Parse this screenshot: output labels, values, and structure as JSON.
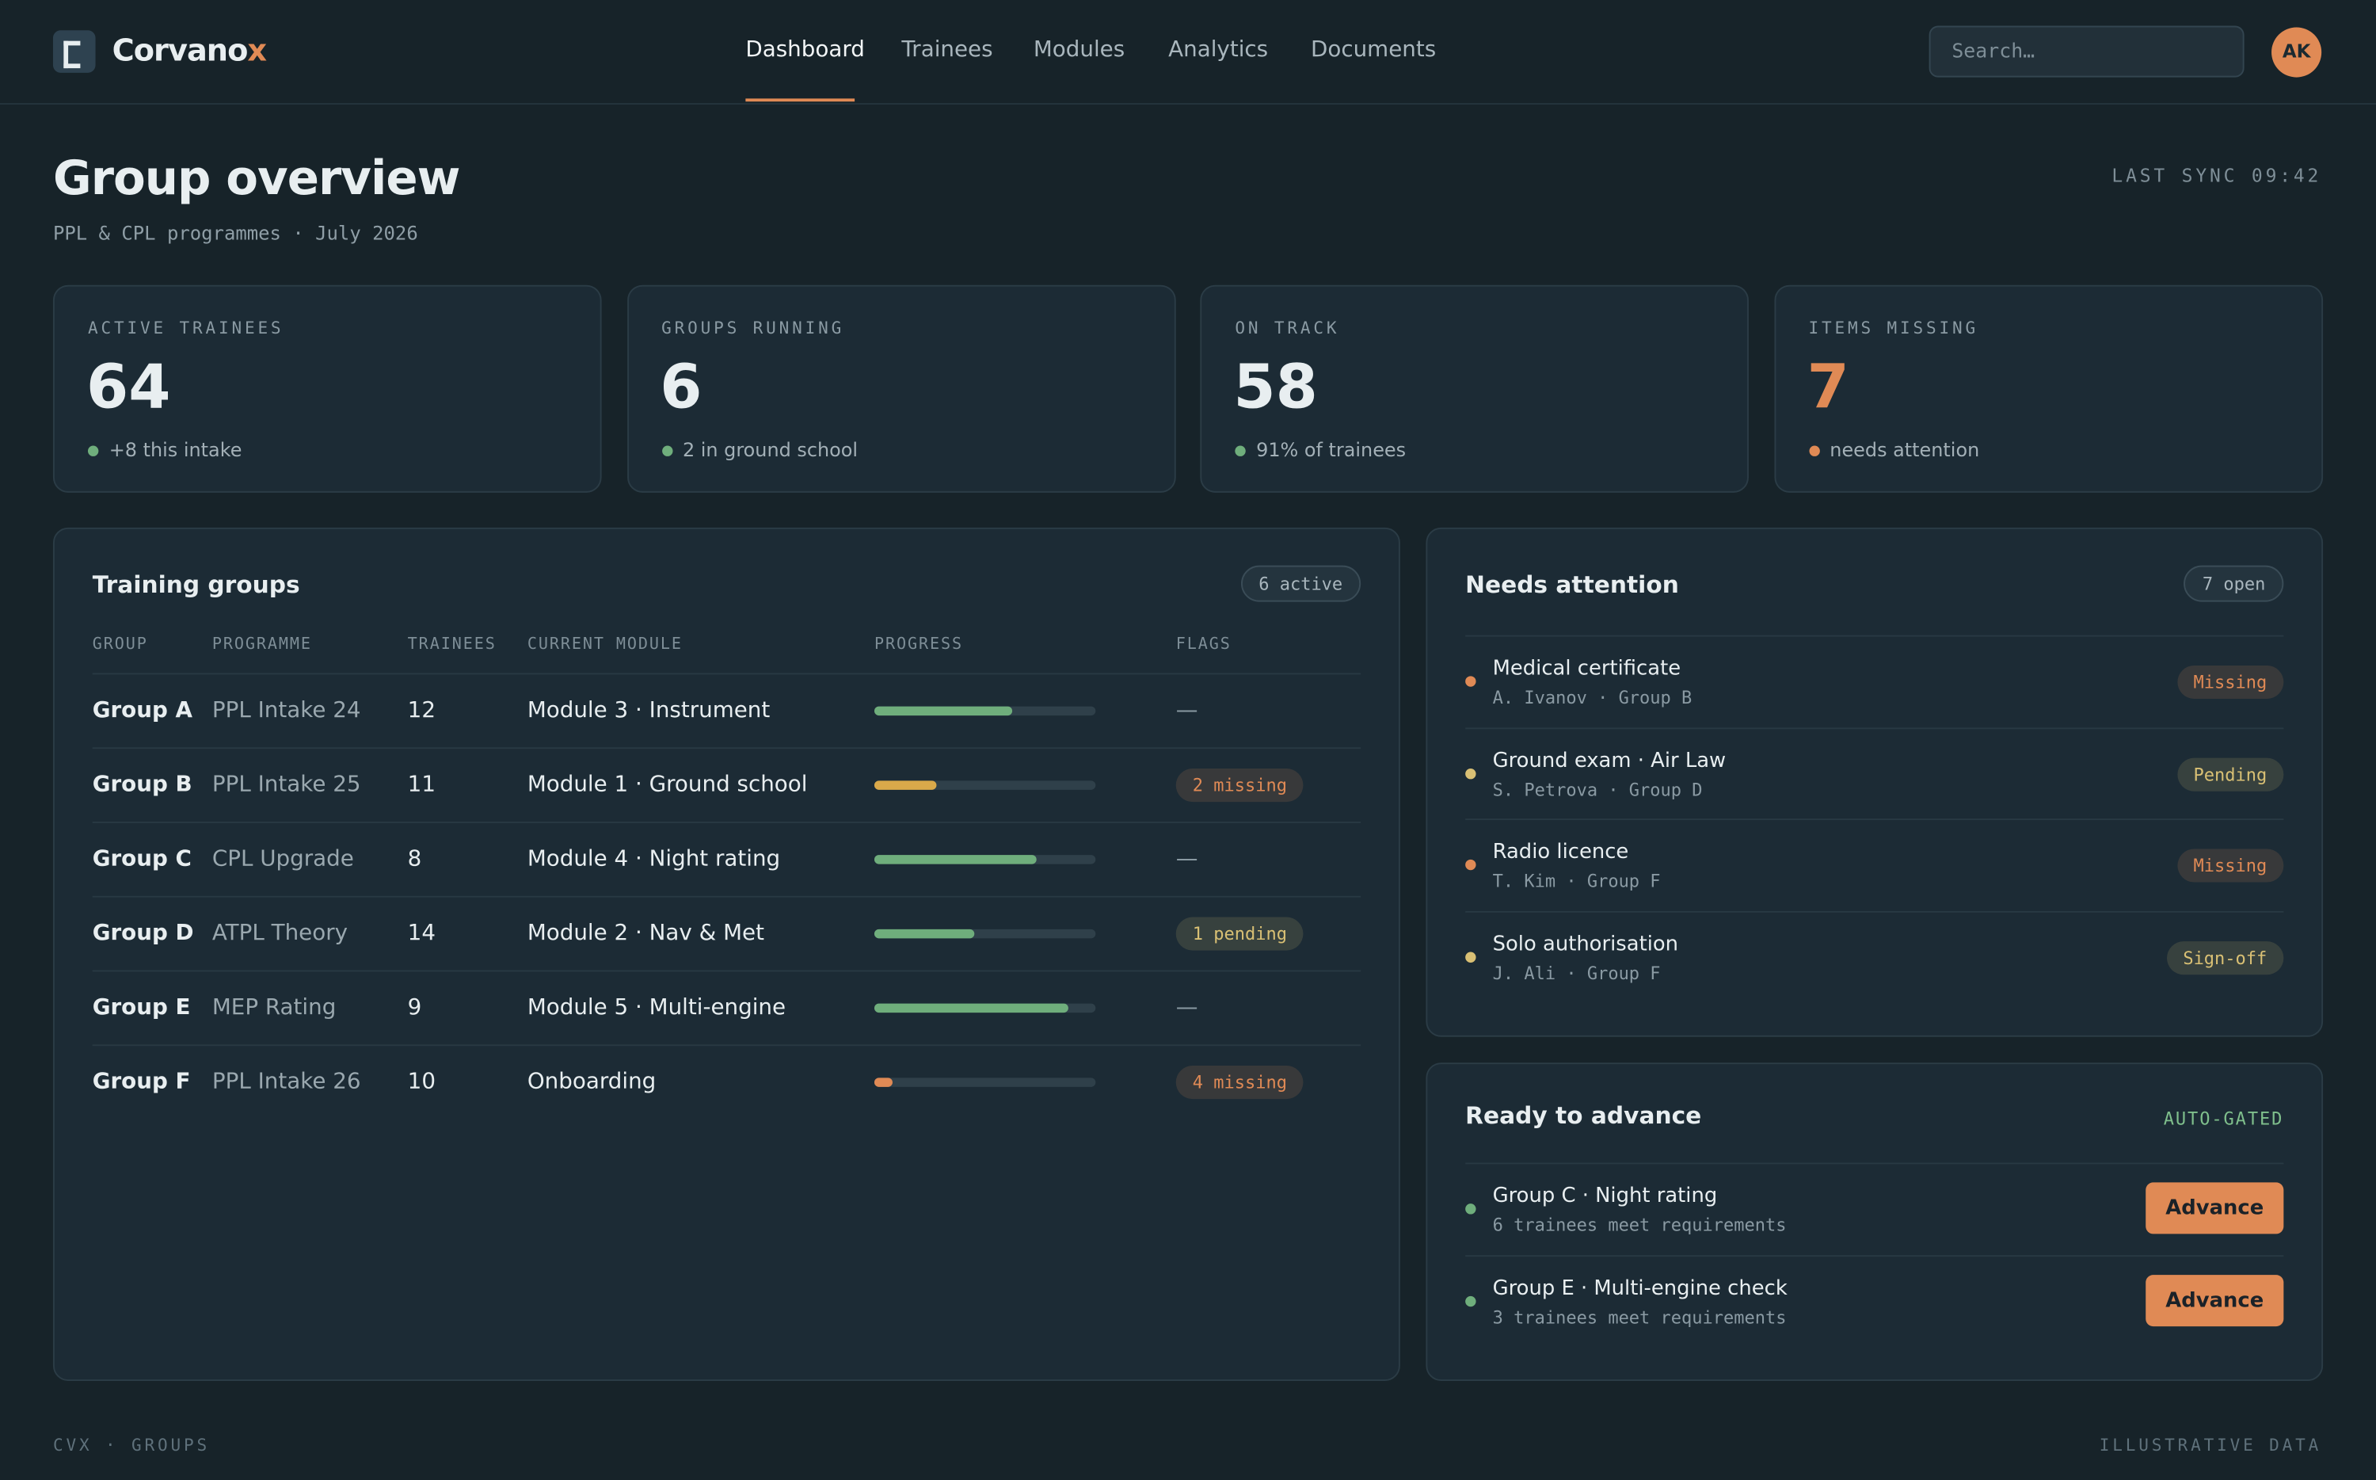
{
  "header": {
    "brand": "Corvano",
    "brand_accent": "x",
    "nav": [
      "Dashboard",
      "Trainees",
      "Modules",
      "Analytics",
      "Documents"
    ],
    "search_placeholder": "Search…",
    "avatar": "AK"
  },
  "page": {
    "title": "Group overview",
    "subtitle": "PPL & CPL programmes · July 2026",
    "sync": "LAST SYNC 09:42"
  },
  "stats": [
    {
      "label": "ACTIVE TRAINEES",
      "value": "64",
      "note": "+8 this intake",
      "color": "#e8eef0",
      "dot": "#6fae7c"
    },
    {
      "label": "GROUPS RUNNING",
      "value": "6",
      "note": "2 in ground school",
      "color": "#e8eef0",
      "dot": "#6fae7c"
    },
    {
      "label": "ON TRACK",
      "value": "58",
      "note": "91% of trainees",
      "color": "#e8eef0",
      "dot": "#6fae7c"
    },
    {
      "label": "ITEMS MISSING",
      "value": "7",
      "note": "needs attention",
      "color": "#e08a55",
      "dot": "#e08a55"
    }
  ],
  "table": {
    "title": "Training groups",
    "badge": "6 active",
    "columns": [
      "GROUP",
      "PROGRAMME",
      "TRAINEES",
      "CURRENT MODULE",
      "PROGRESS",
      "FLAGS"
    ],
    "rows": [
      {
        "group": "Group A",
        "programme": "PPL Intake 24",
        "trainees": "12",
        "module": "Module 3 · Instrument",
        "progress": 62,
        "progress_color": "#6fae7c",
        "flag": "—",
        "flag_color": null
      },
      {
        "group": "Group B",
        "programme": "PPL Intake 25",
        "trainees": "11",
        "module": "Module 1 · Ground school",
        "progress": 28,
        "progress_color": "#d9a94a",
        "flag": "2 missing",
        "flag_color": "#e08a55"
      },
      {
        "group": "Group C",
        "programme": "CPL Upgrade",
        "trainees": "8",
        "module": "Module 4 · Night rating",
        "progress": 73,
        "progress_color": "#6fae7c",
        "flag": "—",
        "flag_color": null
      },
      {
        "group": "Group D",
        "programme": "ATPL Theory",
        "trainees": "14",
        "module": "Module 2 · Nav & Met",
        "progress": 45,
        "progress_color": "#6fae7c",
        "flag": "1 pending",
        "flag_color": "#d9c074"
      },
      {
        "group": "Group E",
        "programme": "MEP Rating",
        "trainees": "9",
        "module": "Module 5 · Multi-engine",
        "progress": 88,
        "progress_color": "#6fae7c",
        "flag": "—",
        "flag_color": null
      },
      {
        "group": "Group F",
        "programme": "PPL Intake 26",
        "trainees": "10",
        "module": "Onboarding",
        "progress": 8,
        "progress_color": "#e08a55",
        "flag": "4 missing",
        "flag_color": "#e08a55"
      }
    ]
  },
  "attention": {
    "title": "Needs attention",
    "badge": "7 open",
    "items": [
      {
        "title": "Medical certificate",
        "sub": "A. Ivanov · Group B",
        "status": "Missing",
        "color": "#e08a55"
      },
      {
        "title": "Ground exam · Air Law",
        "sub": "S. Petrova · Group D",
        "status": "Pending",
        "color": "#d9c074"
      },
      {
        "title": "Radio licence",
        "sub": "T. Kim · Group F",
        "status": "Missing",
        "color": "#e08a55"
      },
      {
        "title": "Solo authorisation",
        "sub": "J. Ali · Group F",
        "status": "Sign-off",
        "color": "#d9c074"
      }
    ]
  },
  "advance": {
    "title": "Ready to advance",
    "tag": "AUTO-GATED",
    "items": [
      {
        "title": "Group C · Night rating",
        "sub": "6 trainees meet requirements",
        "button": "Advance"
      },
      {
        "title": "Group E · Multi-engine check",
        "sub": "3 trainees meet requirements",
        "button": "Advance"
      }
    ]
  },
  "footer": {
    "left": "CVX · GROUPS",
    "right": "ILLUSTRATIVE DATA"
  }
}
